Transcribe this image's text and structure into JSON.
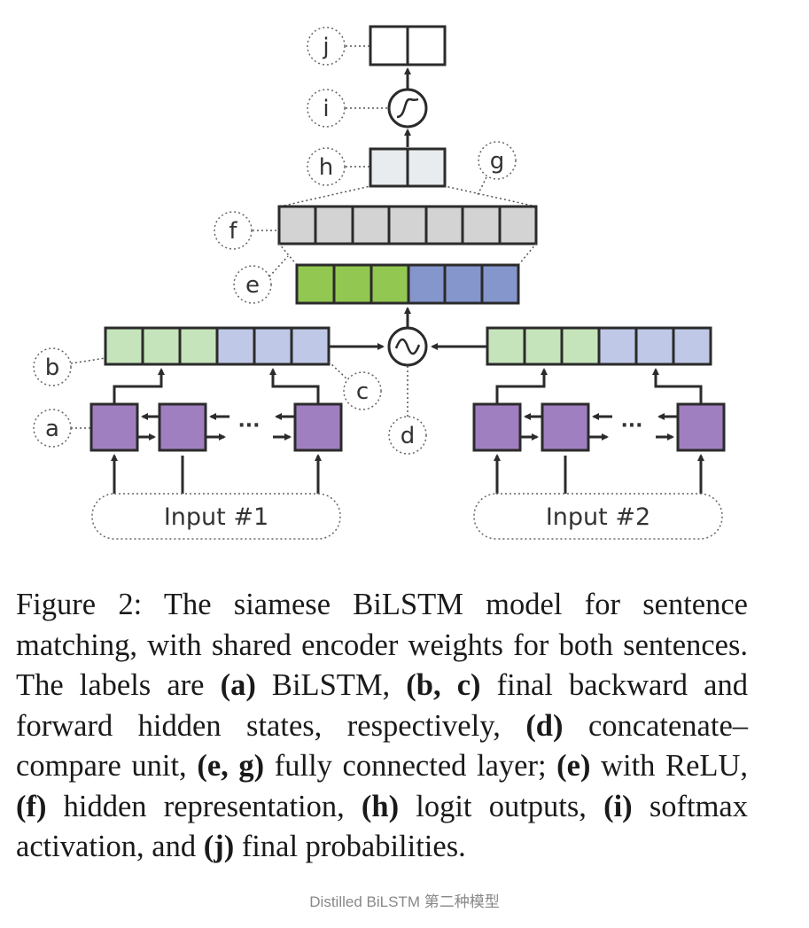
{
  "diagram": {
    "callouts": {
      "j": "j",
      "i": "i",
      "h": "h",
      "g": "g",
      "f": "f",
      "e": "e",
      "b": "b",
      "c": "c",
      "a": "a",
      "d": "d"
    },
    "ellipsis_left": "···",
    "ellipsis_right": "···",
    "input_1": "Input #1",
    "input_2": "Input #2",
    "colors": {
      "green": "#92c851",
      "blue": "#8496cc",
      "light_green": "#c6e4bb",
      "light_blue": "#bfc8e6",
      "purple": "#a07fc0",
      "gray": "#d3d3d3",
      "light_gray": "#e9ecee"
    }
  },
  "caption": {
    "figure_label": "Figure 2:",
    "t1": " The siamese BiLSTM model for sentence matching, with shared encoder weights for both sen­tences.  The labels are ",
    "a": "(a)",
    "t2": " BiLSTM, ",
    "bc": "(b, c)",
    "t3": " final backward and forward hidden states, respectively, ",
    "d": "(d)",
    "t4": " concatenate–compare unit, ",
    "eg": "(e, g)",
    "t5": " fully connected layer; ",
    "e": "(e)",
    "t6": " with ReLU, ",
    "f": "(f)",
    "t7": " hidden representation, ",
    "h": "(h)",
    "t8": " logit out­puts, ",
    "i": "(i)",
    "t9": " softmax activation, and ",
    "j": "(j)",
    "t10": " final probabilities."
  },
  "footnote": "Distilled BiLSTM 第二种模型"
}
